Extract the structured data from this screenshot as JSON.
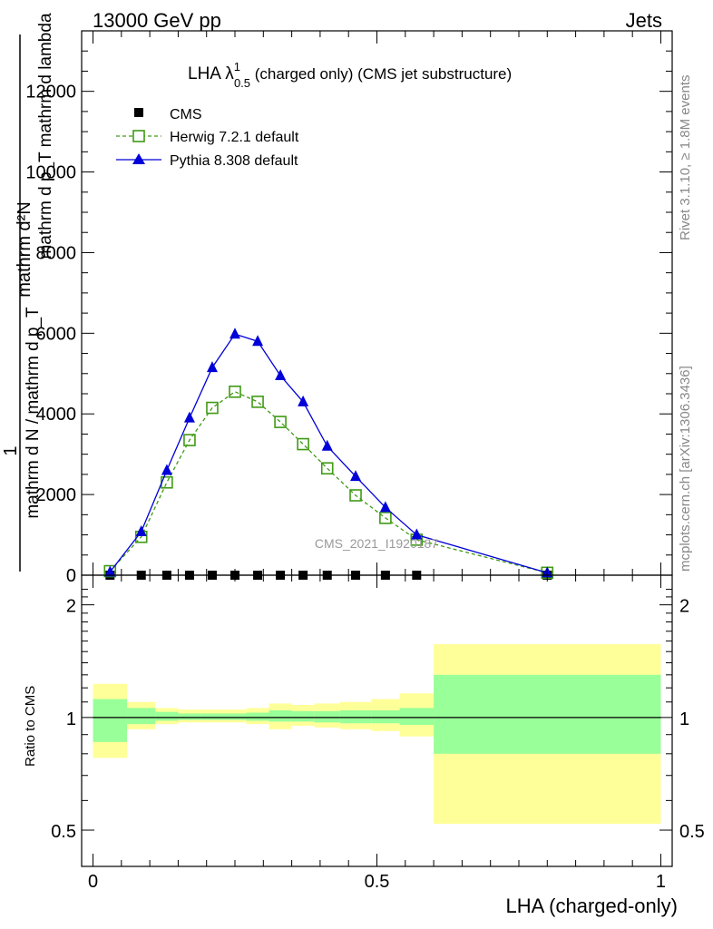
{
  "header": {
    "left": "13000 GeV pp",
    "right": "Jets"
  },
  "side_labels": {
    "rivet": "Rivet 3.1.10, ≥ 1.8M events",
    "mcplots": "mcplots.cern.ch [arXiv:1306.3436]"
  },
  "title": {
    "main": "LHA λ",
    "superscript": "1",
    "subscript": "0.5",
    "rest": " (charged only) (CMS jet substructure)"
  },
  "watermark": "CMS_2021_I1920187",
  "y_axis_main": {
    "numerator": "mathrm d²N",
    "denominator": "mathrm d p_T mathrm d lambda",
    "prefix_num": "1",
    "prefix_den": "mathrm d N / mathrm d p_T",
    "label_line1": "mathrm d N / mathrm d p_T",
    "ticks": [
      "0",
      "2000",
      "4000",
      "6000",
      "8000",
      "10000",
      "12000"
    ]
  },
  "y_axis_ratio": {
    "label": "Ratio to CMS",
    "ticks": [
      "0.5",
      "1",
      "2"
    ]
  },
  "x_axis": {
    "label": "LHA (charged-only)",
    "ticks": [
      "0",
      "0.5",
      "1"
    ]
  },
  "legend": [
    {
      "name": "CMS",
      "marker": "filled-square",
      "color": "#000000"
    },
    {
      "name": "Herwig 7.2.1 default",
      "marker": "open-square-dashed",
      "color": "#3f9a14"
    },
    {
      "name": "Pythia 8.308 default",
      "marker": "filled-triangle",
      "color": "#0000d8"
    }
  ],
  "chart_data": {
    "type": "line",
    "x_range": [
      -0.02,
      1.02
    ],
    "y_range": [
      0,
      13500
    ],
    "ratio_y_log": true,
    "ratio_y_range": [
      0.4,
      2.4
    ],
    "bins": [
      [
        0.0,
        0.06
      ],
      [
        0.06,
        0.11
      ],
      [
        0.11,
        0.15
      ],
      [
        0.15,
        0.19
      ],
      [
        0.19,
        0.23
      ],
      [
        0.23,
        0.27
      ],
      [
        0.27,
        0.31
      ],
      [
        0.31,
        0.35
      ],
      [
        0.35,
        0.39
      ],
      [
        0.39,
        0.435
      ],
      [
        0.435,
        0.49
      ],
      [
        0.49,
        0.54
      ],
      [
        0.54,
        0.6
      ],
      [
        0.6,
        1.0
      ]
    ],
    "series": [
      {
        "name": "CMS",
        "x": [
          0.03,
          0.085,
          0.13,
          0.17,
          0.21,
          0.25,
          0.29,
          0.33,
          0.37,
          0.4125,
          0.4625,
          0.515,
          0.57,
          0.8
        ],
        "y": [
          0,
          0,
          0,
          0,
          0,
          0,
          0,
          0,
          0,
          0,
          0,
          0,
          0,
          0
        ]
      },
      {
        "name": "Herwig 7.2.1 default",
        "x": [
          0.03,
          0.085,
          0.13,
          0.17,
          0.21,
          0.25,
          0.29,
          0.33,
          0.37,
          0.4125,
          0.4625,
          0.515,
          0.57,
          0.8
        ],
        "y": [
          100,
          950,
          2300,
          3350,
          4150,
          4550,
          4300,
          3800,
          3250,
          2650,
          1980,
          1420,
          880,
          60
        ]
      },
      {
        "name": "Pythia 8.308 default",
        "x": [
          0.03,
          0.085,
          0.13,
          0.17,
          0.21,
          0.25,
          0.29,
          0.33,
          0.37,
          0.4125,
          0.4625,
          0.515,
          0.57,
          0.8
        ],
        "y": [
          80,
          1080,
          2600,
          3900,
          5150,
          5980,
          5800,
          4950,
          4300,
          3200,
          2450,
          1680,
          1000,
          60
        ]
      }
    ],
    "ratio_bands": {
      "inner_green": [
        [
          0.86,
          1.12
        ],
        [
          0.96,
          1.06
        ],
        [
          0.98,
          1.035
        ],
        [
          0.985,
          1.025
        ],
        [
          0.985,
          1.025
        ],
        [
          0.985,
          1.025
        ],
        [
          0.98,
          1.03
        ],
        [
          0.975,
          1.045
        ],
        [
          0.975,
          1.04
        ],
        [
          0.97,
          1.04
        ],
        [
          0.965,
          1.045
        ],
        [
          0.965,
          1.045
        ],
        [
          0.955,
          1.06
        ],
        [
          0.8,
          1.3
        ]
      ],
      "outer_yellow": [
        [
          0.78,
          1.23
        ],
        [
          0.93,
          1.1
        ],
        [
          0.96,
          1.06
        ],
        [
          0.97,
          1.05
        ],
        [
          0.97,
          1.05
        ],
        [
          0.97,
          1.05
        ],
        [
          0.96,
          1.06
        ],
        [
          0.93,
          1.09
        ],
        [
          0.95,
          1.08
        ],
        [
          0.94,
          1.09
        ],
        [
          0.93,
          1.1
        ],
        [
          0.92,
          1.12
        ],
        [
          0.89,
          1.16
        ],
        [
          0.52,
          1.57
        ]
      ]
    }
  }
}
